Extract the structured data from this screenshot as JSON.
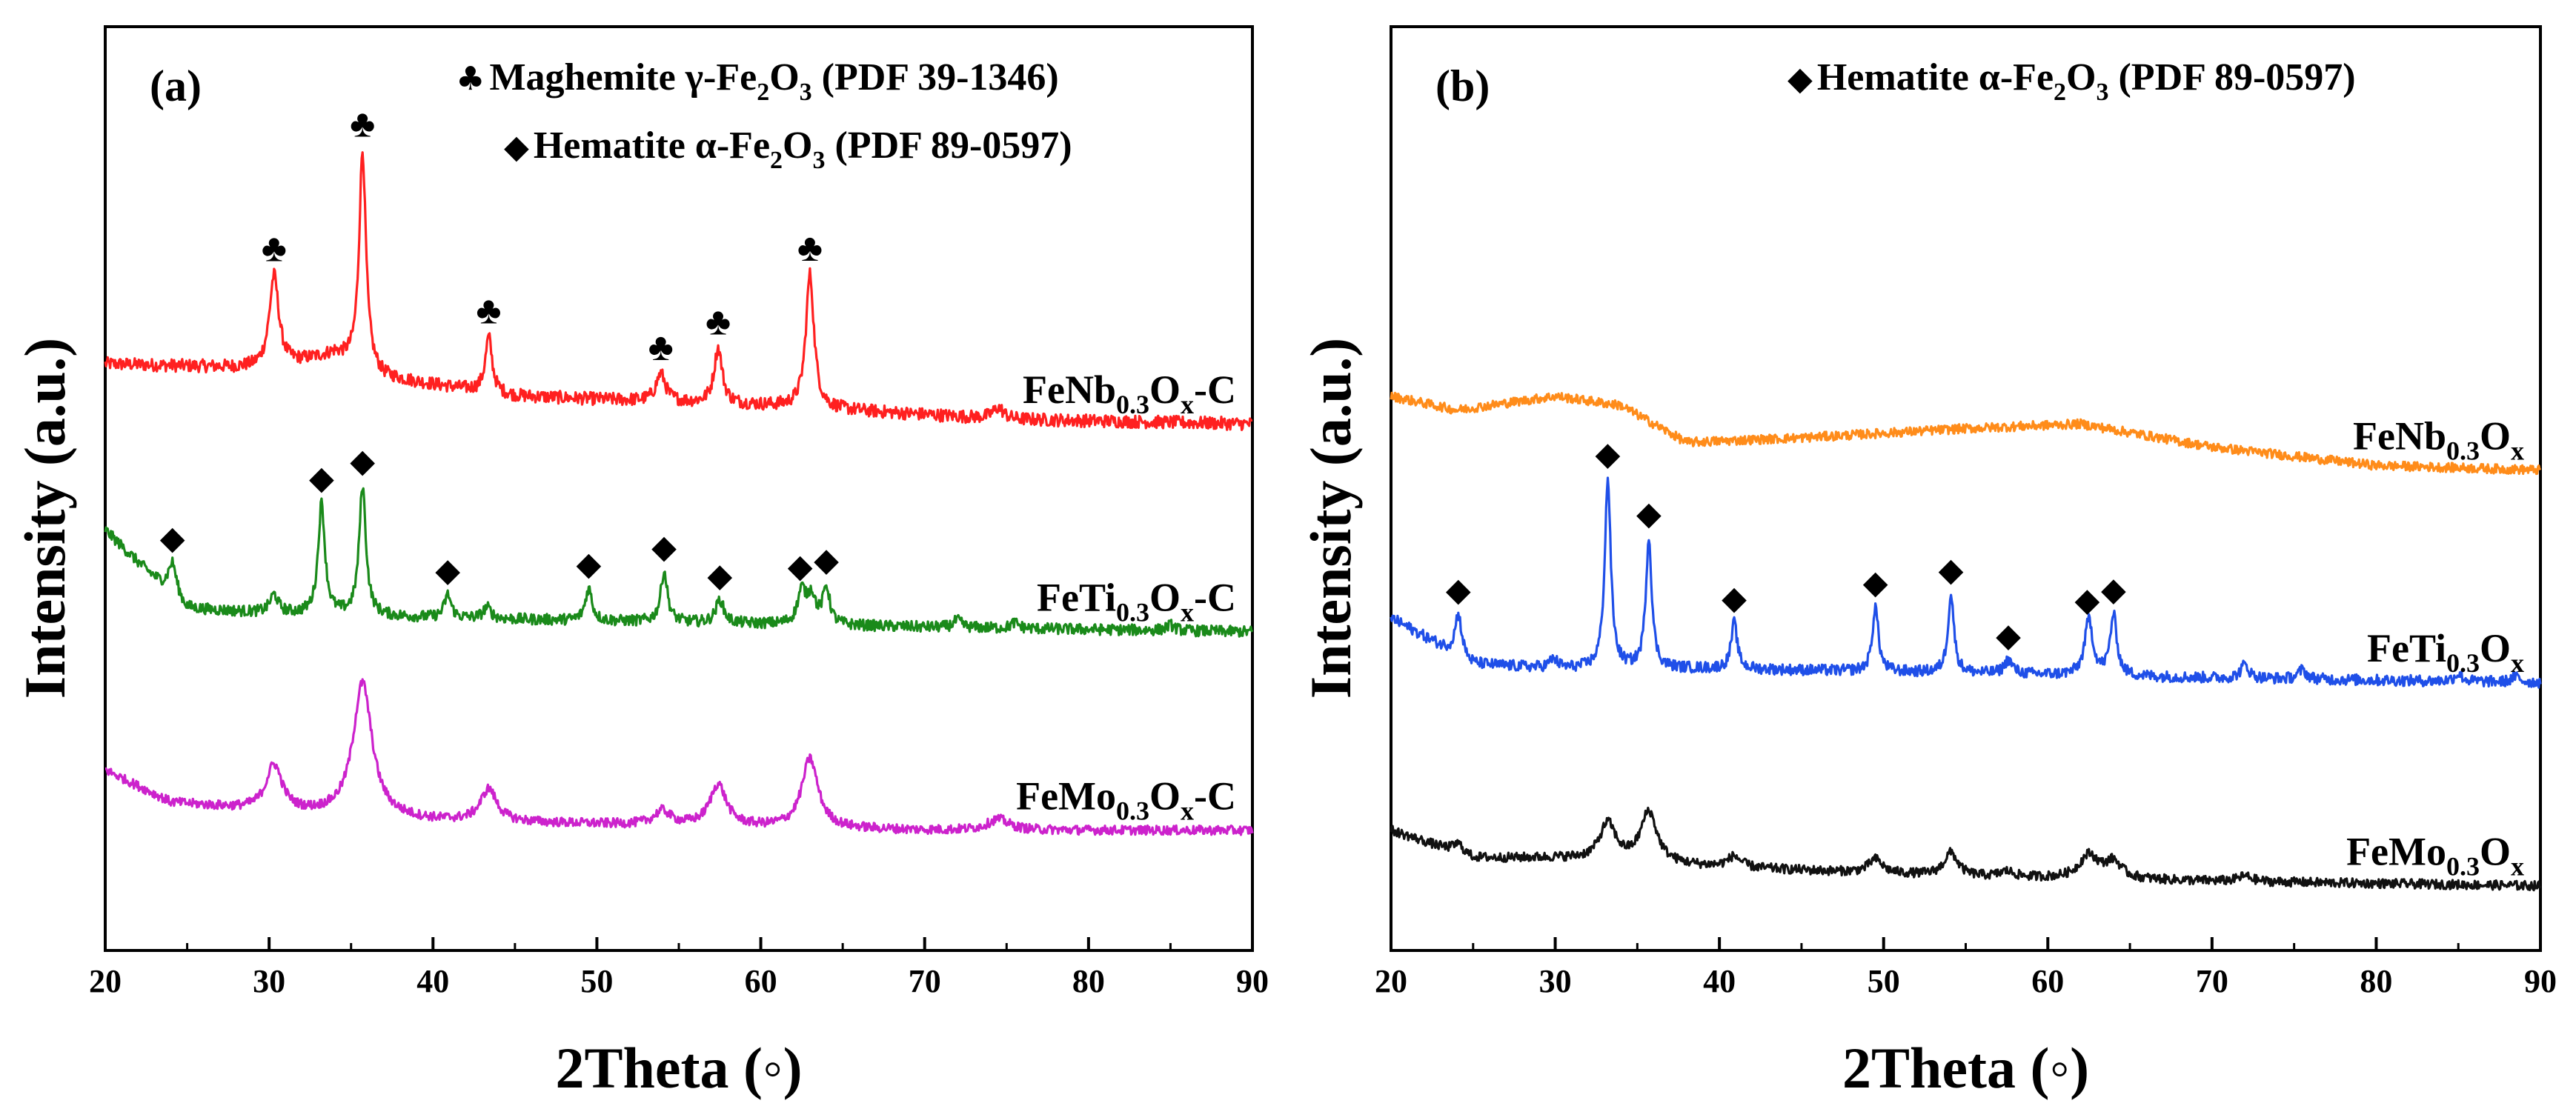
{
  "chart_data": [
    {
      "type": "line",
      "panel_label": "(a)",
      "xlabel": "2Theta (◦)",
      "ylabel": "Intensity (a.u.)",
      "xlim": [
        20,
        90
      ],
      "xticks": [
        20,
        30,
        40,
        50,
        60,
        70,
        80,
        90
      ],
      "legend": [
        {
          "marker": "♣",
          "text": "Maghemite γ-Fe",
          "sub1": "2",
          "mid": "O",
          "sub2": "3",
          "tail": " (PDF 39-1346)"
        },
        {
          "marker": "◆",
          "text": "Hematite α-Fe",
          "sub1": "2",
          "mid": "O",
          "sub2": "3",
          "tail": " (PDF 89-0597)"
        }
      ],
      "series": [
        {
          "name": "FeNb0.3Ox-C",
          "label": {
            "pre": "FeNb",
            "sub": "0.3",
            "mid": "O",
            "sub2": "x",
            "post": "-C"
          },
          "color": "#ff2020",
          "baseline": [
            [
              20,
              0.635
            ],
            [
              30,
              0.63
            ],
            [
              34,
              0.645
            ],
            [
              37,
              0.62
            ],
            [
              45,
              0.6
            ],
            [
              60,
              0.59
            ],
            [
              75,
              0.575
            ],
            [
              90,
              0.57
            ]
          ],
          "peaks": [
            [
              30.3,
              0.1,
              0.35
            ],
            [
              35.7,
              0.235,
              0.25
            ],
            [
              43.4,
              0.06,
              0.25
            ],
            [
              53.9,
              0.03,
              0.35
            ],
            [
              57.4,
              0.06,
              0.3
            ],
            [
              63.0,
              0.145,
              0.3
            ],
            [
              74.5,
              0.012,
              0.4
            ]
          ],
          "noise": 0.007,
          "markers": [
            {
              "x": 30.3,
              "symbol": "♣"
            },
            {
              "x": 35.7,
              "symbol": "♣"
            },
            {
              "x": 43.4,
              "symbol": "♣"
            },
            {
              "x": 53.9,
              "symbol": "♣"
            },
            {
              "x": 57.4,
              "symbol": "♣"
            },
            {
              "x": 63.0,
              "symbol": "♣"
            }
          ]
        },
        {
          "name": "FeTi0.3Ox-C",
          "label": {
            "pre": "FeTi",
            "sub": "0.3",
            "mid": "O",
            "sub2": "x",
            "post": "-C"
          },
          "color": "#1a8a1a",
          "baseline": [
            [
              20,
              0.455
            ],
            [
              22,
              0.42
            ],
            [
              25,
              0.37
            ],
            [
              30,
              0.365
            ],
            [
              40,
              0.36
            ],
            [
              55,
              0.355
            ],
            [
              70,
              0.35
            ],
            [
              90,
              0.345
            ]
          ],
          "peaks": [
            [
              24.1,
              0.035,
              0.3
            ],
            [
              30.3,
              0.02,
              0.3
            ],
            [
              33.2,
              0.12,
              0.25
            ],
            [
              35.7,
              0.14,
              0.25
            ],
            [
              40.9,
              0.025,
              0.25
            ],
            [
              43.3,
              0.012,
              0.3
            ],
            [
              49.5,
              0.035,
              0.25
            ],
            [
              54.1,
              0.055,
              0.25
            ],
            [
              57.5,
              0.025,
              0.3
            ],
            [
              62.5,
              0.035,
              0.3
            ],
            [
              63.1,
              0.03,
              0.3
            ],
            [
              64.0,
              0.04,
              0.25
            ],
            [
              72.0,
              0.008,
              0.3
            ],
            [
              75.5,
              0.006,
              0.3
            ],
            [
              85.0,
              0.006,
              0.3
            ]
          ],
          "noise": 0.006,
          "markers": [
            {
              "x": 24.1,
              "symbol": "◆"
            },
            {
              "x": 33.2,
              "symbol": "◆"
            },
            {
              "x": 35.7,
              "symbol": "◆"
            },
            {
              "x": 40.9,
              "symbol": "◆"
            },
            {
              "x": 49.5,
              "symbol": "◆"
            },
            {
              "x": 54.1,
              "symbol": "◆"
            },
            {
              "x": 57.5,
              "symbol": "◆"
            },
            {
              "x": 62.4,
              "symbol": "◆"
            },
            {
              "x": 64.0,
              "symbol": "◆"
            }
          ]
        },
        {
          "name": "FeMo0.3Ox-C",
          "label": {
            "pre": "FeMo",
            "sub": "0.3",
            "mid": "O",
            "sub2": "x",
            "post": "-C"
          },
          "color": "#cc22cc",
          "baseline": [
            [
              20,
              0.195
            ],
            [
              24,
              0.16
            ],
            [
              30,
              0.15
            ],
            [
              40,
              0.14
            ],
            [
              55,
              0.135
            ],
            [
              70,
              0.13
            ],
            [
              90,
              0.13
            ]
          ],
          "peaks": [
            [
              30.3,
              0.05,
              0.6
            ],
            [
              35.7,
              0.145,
              0.7
            ],
            [
              43.4,
              0.035,
              0.6
            ],
            [
              54.0,
              0.015,
              0.6
            ],
            [
              57.4,
              0.045,
              0.6
            ],
            [
              63.0,
              0.075,
              0.6
            ],
            [
              74.5,
              0.012,
              0.8
            ]
          ],
          "noise": 0.005,
          "markers": []
        }
      ]
    },
    {
      "type": "line",
      "panel_label": "(b)",
      "xlabel": "2Theta (◦)",
      "ylabel": "Intensity (a.u.)",
      "xlim": [
        20,
        90
      ],
      "xticks": [
        20,
        30,
        40,
        50,
        60,
        70,
        80,
        90
      ],
      "legend": [
        {
          "marker": "◆",
          "text": "Hematite α-Fe",
          "sub1": "2",
          "mid": "O",
          "sub2": "3",
          "tail": " (PDF 89-0597)"
        }
      ],
      "series": [
        {
          "name": "FeNb0.3Ox",
          "label": {
            "pre": "FeNb",
            "sub": "0.3",
            "mid": "O",
            "sub2": "x",
            "post": ""
          },
          "color": "#ff8c1a",
          "baseline": [
            [
              20,
              0.6
            ],
            [
              24,
              0.585
            ],
            [
              30,
              0.6
            ],
            [
              34,
              0.59
            ],
            [
              38,
              0.55
            ],
            [
              45,
              0.555
            ],
            [
              55,
              0.565
            ],
            [
              62,
              0.57
            ],
            [
              70,
              0.545
            ],
            [
              80,
              0.525
            ],
            [
              90,
              0.52
            ]
          ],
          "peaks": [],
          "noise": 0.005,
          "markers": []
        },
        {
          "name": "FeTi0.3Ox",
          "label": {
            "pre": "FeTi",
            "sub": "0.3",
            "mid": "O",
            "sub2": "x",
            "post": ""
          },
          "color": "#1f4fe8",
          "baseline": [
            [
              20,
              0.36
            ],
            [
              25,
              0.31
            ],
            [
              30,
              0.305
            ],
            [
              40,
              0.305
            ],
            [
              55,
              0.3
            ],
            [
              70,
              0.295
            ],
            [
              90,
              0.29
            ]
          ],
          "peaks": [
            [
              24.1,
              0.045,
              0.25
            ],
            [
              29.9,
              0.01,
              0.3
            ],
            [
              33.2,
              0.205,
              0.22
            ],
            [
              35.7,
              0.14,
              0.22
            ],
            [
              40.9,
              0.05,
              0.22
            ],
            [
              49.5,
              0.07,
              0.22
            ],
            [
              54.1,
              0.085,
              0.22
            ],
            [
              57.6,
              0.015,
              0.3
            ],
            [
              62.5,
              0.06,
              0.3
            ],
            [
              64.0,
              0.065,
              0.25
            ],
            [
              72.0,
              0.015,
              0.3
            ],
            [
              75.5,
              0.01,
              0.3
            ],
            [
              85.0,
              0.008,
              0.3
            ],
            [
              88.5,
              0.006,
              0.3
            ]
          ],
          "noise": 0.006,
          "markers": [
            {
              "x": 24.1,
              "symbol": "◆"
            },
            {
              "x": 33.2,
              "symbol": "◆"
            },
            {
              "x": 35.7,
              "symbol": "◆"
            },
            {
              "x": 40.9,
              "symbol": "◆"
            },
            {
              "x": 49.5,
              "symbol": "◆"
            },
            {
              "x": 54.1,
              "symbol": "◆"
            },
            {
              "x": 57.6,
              "symbol": "◆"
            },
            {
              "x": 62.4,
              "symbol": "◆"
            },
            {
              "x": 64.0,
              "symbol": "◆"
            }
          ]
        },
        {
          "name": "FeMo0.3Ox",
          "label": {
            "pre": "FeMo",
            "sub": "0.3",
            "mid": "O",
            "sub2": "x",
            "post": ""
          },
          "color": "#111111",
          "baseline": [
            [
              20,
              0.13
            ],
            [
              25,
              0.1
            ],
            [
              30,
              0.1
            ],
            [
              40,
              0.09
            ],
            [
              55,
              0.08
            ],
            [
              70,
              0.075
            ],
            [
              90,
              0.07
            ]
          ],
          "peaks": [
            [
              24.1,
              0.01,
              0.4
            ],
            [
              33.2,
              0.04,
              0.6
            ],
            [
              35.7,
              0.055,
              0.6
            ],
            [
              40.9,
              0.012,
              0.5
            ],
            [
              49.5,
              0.015,
              0.5
            ],
            [
              54.1,
              0.025,
              0.5
            ],
            [
              57.5,
              0.006,
              0.5
            ],
            [
              62.5,
              0.025,
              0.7
            ],
            [
              64.0,
              0.018,
              0.6
            ],
            [
              72.0,
              0.006,
              0.5
            ]
          ],
          "noise": 0.005,
          "markers": []
        }
      ]
    }
  ]
}
